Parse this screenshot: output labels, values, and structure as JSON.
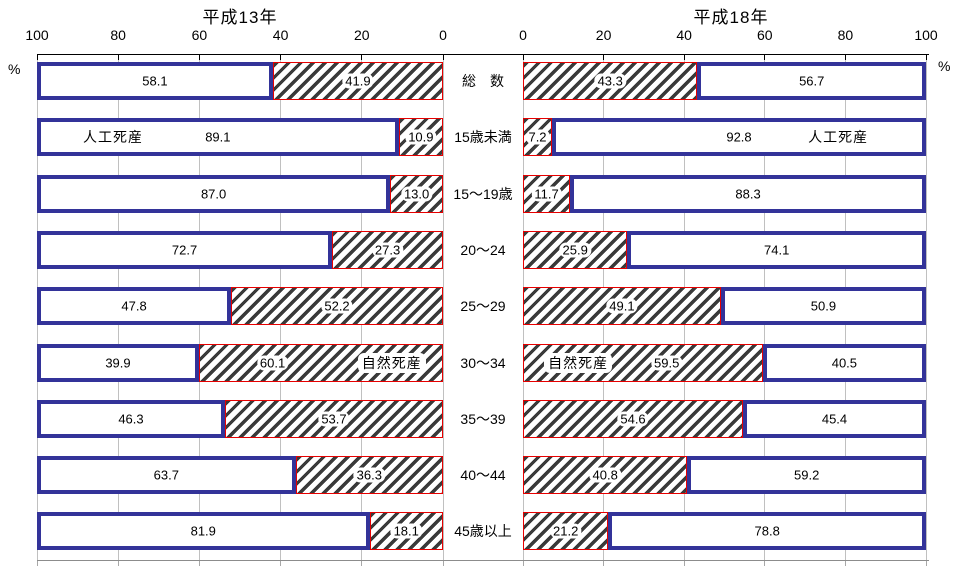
{
  "chart_data": {
    "type": "bar",
    "layout": "bilateral-stacked-percentage",
    "grid": true,
    "percent_symbol": "%",
    "panels": [
      {
        "side": "left",
        "title": "平成13年",
        "axis_reversed": true,
        "ticks": [
          "100",
          "80",
          "60",
          "40",
          "20",
          "0"
        ],
        "axis_range": [
          0,
          100
        ]
      },
      {
        "side": "right",
        "title": "平成18年",
        "axis_reversed": false,
        "ticks": [
          "0",
          "20",
          "40",
          "60",
          "80",
          "100"
        ],
        "axis_range": [
          0,
          100
        ]
      }
    ],
    "legend": {
      "white_bar": "人工死産",
      "hatched_bar": "自然死産"
    },
    "categories": [
      "総　数",
      "15歳未満",
      "15〜19歳",
      "20〜24",
      "25〜29",
      "30〜34",
      "35〜39",
      "40〜44",
      "45歳以上"
    ],
    "series": [
      {
        "name": "平成13年 人工死産",
        "panel": "left",
        "pattern": "white",
        "values": [
          58.1,
          89.1,
          87.0,
          72.7,
          47.8,
          39.9,
          46.3,
          63.7,
          81.9
        ],
        "labels": [
          "58.1",
          "89.1",
          "87.0",
          "72.7",
          "47.8",
          "39.9",
          "46.3",
          "63.7",
          "81.9"
        ]
      },
      {
        "name": "平成13年 自然死産",
        "panel": "left",
        "pattern": "hatched",
        "values": [
          41.9,
          10.9,
          13.0,
          27.3,
          52.2,
          60.1,
          53.7,
          36.3,
          18.1
        ],
        "labels": [
          "41.9",
          "10.9",
          "13.0",
          "27.3",
          "52.2",
          "60.1",
          "53.7",
          "36.3",
          "18.1"
        ]
      },
      {
        "name": "平成18年 自然死産",
        "panel": "right",
        "pattern": "hatched",
        "values": [
          43.3,
          7.2,
          11.7,
          25.9,
          49.1,
          59.5,
          54.6,
          40.8,
          21.2
        ],
        "labels": [
          "43.3",
          "7.2",
          "11.7",
          "25.9",
          "49.1",
          "59.5",
          "54.6",
          "40.8",
          "21.2"
        ]
      },
      {
        "name": "平成18年 人工死産",
        "panel": "right",
        "pattern": "white",
        "values": [
          56.7,
          92.8,
          88.3,
          74.1,
          50.9,
          40.5,
          45.4,
          59.2,
          78.8
        ],
        "labels": [
          "56.7",
          "92.8",
          "88.3",
          "74.1",
          "50.9",
          "40.5",
          "45.4",
          "59.2",
          "78.8"
        ]
      }
    ],
    "annotations": [
      {
        "text": "人工死産",
        "panel": "left",
        "segment": "white",
        "row": 1,
        "pos": 0.21,
        "boxed": false
      },
      {
        "text": "人工死産",
        "panel": "right",
        "segment": "white",
        "row": 1,
        "pos": 0.765,
        "boxed": false
      },
      {
        "text": "自然死産",
        "panel": "left",
        "segment": "hatched",
        "row": 5,
        "pos": 0.79,
        "boxed": true
      },
      {
        "text": "自然死産",
        "panel": "right",
        "segment": "hatched",
        "row": 5,
        "pos": 0.23,
        "boxed": true
      }
    ],
    "colors": {
      "white_bar_border": "#333399",
      "hatched_bar_border": "#e60000",
      "hatch_line": "#3a3a3a",
      "gridline": "#c0c0c0",
      "axis_line": "#000000",
      "bottom_line": "#8c8c8c"
    }
  }
}
